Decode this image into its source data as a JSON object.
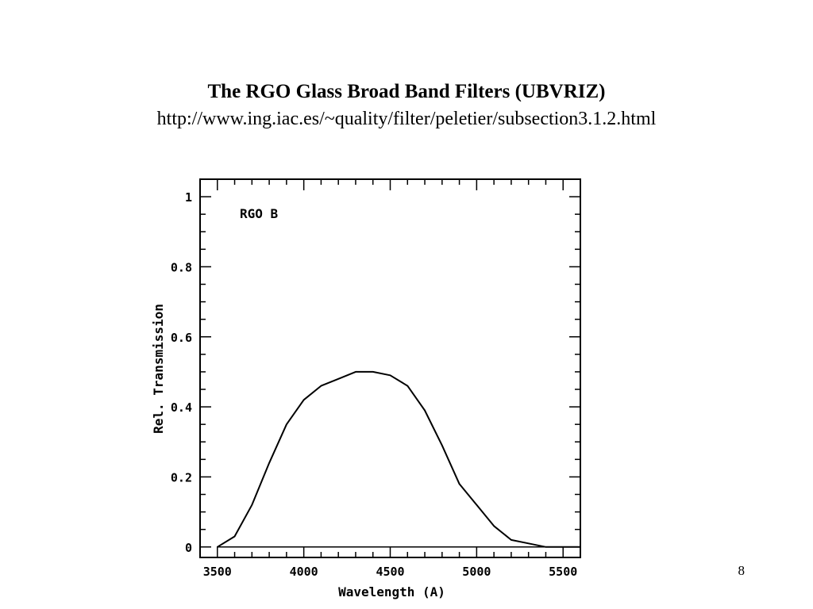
{
  "slide": {
    "title": "The RGO Glass Broad Band Filters (UBVRIZ)",
    "subtitle": "http://www.ing.iac.es/~quality/filter/peletier/subsection3.1.2.html",
    "page_number": "8"
  },
  "chart_data": {
    "type": "line",
    "annotation": "RGO B",
    "xlabel": "Wavelength (A)",
    "ylabel": "Rel. Transmission",
    "xlim": [
      3400,
      5600
    ],
    "ylim": [
      -0.03,
      1.05
    ],
    "xticks_major": [
      3500,
      4000,
      4500,
      5000,
      5500
    ],
    "xtick_labels": [
      "3500",
      "4000",
      "4500",
      "5000",
      "5500"
    ],
    "xticks_minor_step": 100,
    "yticks_major": [
      0,
      0.2,
      0.4,
      0.6,
      0.8,
      1
    ],
    "ytick_labels": [
      "0",
      "0.2",
      "0.4",
      "0.6",
      "0.8",
      "1"
    ],
    "yticks_minor_step": 0.05,
    "grid": false,
    "series": [
      {
        "x": [
          3500,
          3600,
          3700,
          3800,
          3900,
          4000,
          4100,
          4200,
          4300,
          4400,
          4500,
          4600,
          4700,
          4800,
          4900,
          5000,
          5100,
          5200,
          5300,
          5400,
          5500,
          5600
        ],
        "y": [
          0.0,
          0.03,
          0.12,
          0.24,
          0.35,
          0.42,
          0.46,
          0.48,
          0.5,
          0.5,
          0.49,
          0.46,
          0.39,
          0.29,
          0.18,
          0.12,
          0.06,
          0.02,
          0.01,
          0.0,
          0.0,
          0.0
        ]
      }
    ],
    "baseline": 0,
    "line_color": "#000000"
  }
}
